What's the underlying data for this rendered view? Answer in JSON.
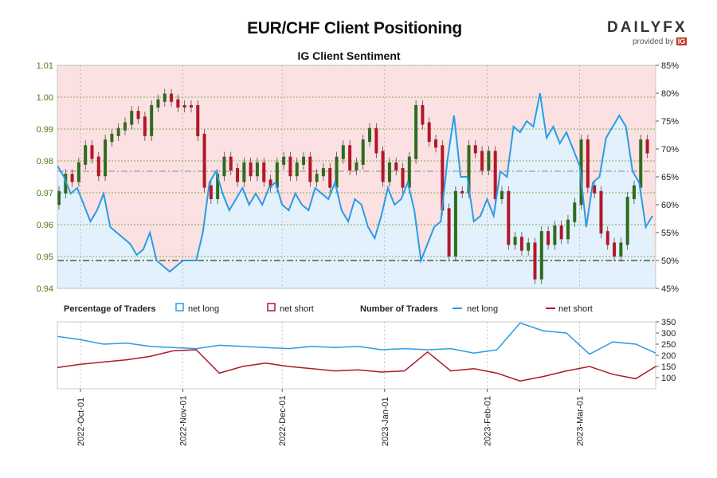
{
  "header": {
    "title": "EUR/CHF Client Positioning",
    "subtitle": "IG Client Sentiment",
    "brand": "DAILYFX",
    "brand_sub": "provided by",
    "brand_badge": "IG"
  },
  "legend": {
    "pct_heading": "Percentage of Traders",
    "count_heading": "Number of Traders",
    "net_long": "net long",
    "net_short": "net short"
  },
  "colors": {
    "long": "#2b9be6",
    "short": "#b0182a",
    "long_fill": "#e2f1fb",
    "short_fill": "#fbe1e1",
    "candle_up": "#2f6b1f",
    "candle_down": "#b0182a",
    "left_axis": "#4a7a10",
    "grid": "#5a9a2a"
  },
  "chart_data": [
    {
      "type": "candlestick",
      "series": [
        {
          "name": "net long",
          "unit": "%",
          "axis": "right"
        }
      ],
      "left_axis": {
        "ylim": [
          0.94,
          1.01
        ],
        "ticks": [
          "0.94",
          "0.95",
          "0.96",
          "0.97",
          "0.98",
          "0.99",
          "1.00",
          "1.01"
        ]
      },
      "right_axis": {
        "ylim": [
          45,
          85
        ],
        "ticks": [
          "45%",
          "50%",
          "55%",
          "60%",
          "65%",
          "70%",
          "75%",
          "80%",
          "85%"
        ]
      },
      "x_ticks": [
        "2022-Oct-01",
        "2022-Nov-01",
        "2022-Dec-01",
        "2023-Jan-01",
        "2023-Feb-01",
        "2023-Mar-01"
      ],
      "x_range": [
        "2022-09-24",
        "2023-03-24"
      ],
      "reference_line": 50,
      "net_long_pct": [
        [
          "2022-09-24",
          67
        ],
        [
          "2022-09-26",
          65
        ],
        [
          "2022-09-28",
          62
        ],
        [
          "2022-09-30",
          63
        ],
        [
          "2022-10-02",
          60
        ],
        [
          "2022-10-04",
          57
        ],
        [
          "2022-10-06",
          59
        ],
        [
          "2022-10-08",
          62
        ],
        [
          "2022-10-10",
          56
        ],
        [
          "2022-10-12",
          55
        ],
        [
          "2022-10-14",
          54
        ],
        [
          "2022-10-16",
          53
        ],
        [
          "2022-10-18",
          51
        ],
        [
          "2022-10-20",
          52
        ],
        [
          "2022-10-22",
          55
        ],
        [
          "2022-10-24",
          50
        ],
        [
          "2022-10-26",
          49
        ],
        [
          "2022-10-28",
          48
        ],
        [
          "2022-10-30",
          49
        ],
        [
          "2022-11-01",
          50
        ],
        [
          "2022-11-03",
          50
        ],
        [
          "2022-11-05",
          50
        ],
        [
          "2022-11-07",
          55
        ],
        [
          "2022-11-09",
          64
        ],
        [
          "2022-11-11",
          66
        ],
        [
          "2022-11-13",
          62
        ],
        [
          "2022-11-15",
          59
        ],
        [
          "2022-11-17",
          61
        ],
        [
          "2022-11-19",
          63
        ],
        [
          "2022-11-21",
          60
        ],
        [
          "2022-11-23",
          62
        ],
        [
          "2022-11-25",
          60
        ],
        [
          "2022-11-27",
          63
        ],
        [
          "2022-11-29",
          64
        ],
        [
          "2022-12-01",
          60
        ],
        [
          "2022-12-03",
          59
        ],
        [
          "2022-12-05",
          62
        ],
        [
          "2022-12-07",
          60
        ],
        [
          "2022-12-09",
          59
        ],
        [
          "2022-12-11",
          63
        ],
        [
          "2022-12-13",
          62
        ],
        [
          "2022-12-15",
          61
        ],
        [
          "2022-12-17",
          64
        ],
        [
          "2022-12-19",
          59
        ],
        [
          "2022-12-21",
          57
        ],
        [
          "2022-12-23",
          61
        ],
        [
          "2022-12-25",
          60
        ],
        [
          "2022-12-27",
          56
        ],
        [
          "2022-12-29",
          54
        ],
        [
          "2022-12-31",
          58
        ],
        [
          "2023-01-02",
          63
        ],
        [
          "2023-01-04",
          60
        ],
        [
          "2023-01-06",
          61
        ],
        [
          "2023-01-08",
          64
        ],
        [
          "2023-01-10",
          59
        ],
        [
          "2023-01-12",
          50
        ],
        [
          "2023-01-14",
          53
        ],
        [
          "2023-01-16",
          56
        ],
        [
          "2023-01-18",
          57
        ],
        [
          "2023-01-20",
          68
        ],
        [
          "2023-01-22",
          76
        ],
        [
          "2023-01-24",
          65
        ],
        [
          "2023-01-26",
          65
        ],
        [
          "2023-01-28",
          57
        ],
        [
          "2023-01-30",
          58
        ],
        [
          "2023-02-01",
          61
        ],
        [
          "2023-02-03",
          58
        ],
        [
          "2023-02-05",
          66
        ],
        [
          "2023-02-07",
          65
        ],
        [
          "2023-02-09",
          74
        ],
        [
          "2023-02-11",
          73
        ],
        [
          "2023-02-13",
          75
        ],
        [
          "2023-02-15",
          74
        ],
        [
          "2023-02-17",
          80
        ],
        [
          "2023-02-19",
          72
        ],
        [
          "2023-02-21",
          74
        ],
        [
          "2023-02-23",
          71
        ],
        [
          "2023-02-25",
          73
        ],
        [
          "2023-02-27",
          70
        ],
        [
          "2023-03-01",
          67
        ],
        [
          "2023-03-03",
          56
        ],
        [
          "2023-03-05",
          64
        ],
        [
          "2023-03-07",
          65
        ],
        [
          "2023-03-09",
          72
        ],
        [
          "2023-03-11",
          74
        ],
        [
          "2023-03-13",
          76
        ],
        [
          "2023-03-15",
          74
        ],
        [
          "2023-03-17",
          66
        ],
        [
          "2023-03-19",
          64
        ],
        [
          "2023-03-21",
          56
        ],
        [
          "2023-03-23",
          58
        ]
      ]
    },
    {
      "type": "line",
      "series": [
        {
          "name": "net long"
        },
        {
          "name": "net short"
        }
      ],
      "right_axis": {
        "ylim": [
          50,
          350
        ],
        "ticks": [
          "100",
          "150",
          "200",
          "250",
          "300",
          "350"
        ]
      },
      "net_long": [
        [
          "2022-09-24",
          285
        ],
        [
          "2022-10-01",
          270
        ],
        [
          "2022-10-08",
          250
        ],
        [
          "2022-10-15",
          255
        ],
        [
          "2022-10-22",
          240
        ],
        [
          "2022-10-29",
          235
        ],
        [
          "2022-11-05",
          230
        ],
        [
          "2022-11-12",
          245
        ],
        [
          "2022-11-19",
          240
        ],
        [
          "2022-11-26",
          235
        ],
        [
          "2022-12-03",
          230
        ],
        [
          "2022-12-10",
          240
        ],
        [
          "2022-12-17",
          235
        ],
        [
          "2022-12-24",
          240
        ],
        [
          "2022-12-31",
          225
        ],
        [
          "2023-01-07",
          230
        ],
        [
          "2023-01-14",
          225
        ],
        [
          "2023-01-21",
          230
        ],
        [
          "2023-01-28",
          210
        ],
        [
          "2023-02-04",
          225
        ],
        [
          "2023-02-11",
          345
        ],
        [
          "2023-02-18",
          310
        ],
        [
          "2023-02-25",
          300
        ],
        [
          "2023-03-04",
          205
        ],
        [
          "2023-03-11",
          260
        ],
        [
          "2023-03-18",
          250
        ],
        [
          "2023-03-24",
          210
        ]
      ],
      "net_short": [
        [
          "2022-09-24",
          145
        ],
        [
          "2022-10-01",
          160
        ],
        [
          "2022-10-08",
          170
        ],
        [
          "2022-10-15",
          180
        ],
        [
          "2022-10-22",
          195
        ],
        [
          "2022-10-29",
          220
        ],
        [
          "2022-11-05",
          225
        ],
        [
          "2022-11-12",
          120
        ],
        [
          "2022-11-19",
          150
        ],
        [
          "2022-11-26",
          165
        ],
        [
          "2022-12-03",
          150
        ],
        [
          "2022-12-10",
          140
        ],
        [
          "2022-12-17",
          130
        ],
        [
          "2022-12-24",
          135
        ],
        [
          "2022-12-31",
          125
        ],
        [
          "2023-01-07",
          130
        ],
        [
          "2023-01-14",
          215
        ],
        [
          "2023-01-21",
          130
        ],
        [
          "2023-01-28",
          140
        ],
        [
          "2023-02-04",
          120
        ],
        [
          "2023-02-11",
          85
        ],
        [
          "2023-02-18",
          105
        ],
        [
          "2023-02-25",
          130
        ],
        [
          "2023-03-04",
          150
        ],
        [
          "2023-03-11",
          115
        ],
        [
          "2023-03-18",
          95
        ],
        [
          "2023-03-24",
          150
        ]
      ]
    }
  ]
}
